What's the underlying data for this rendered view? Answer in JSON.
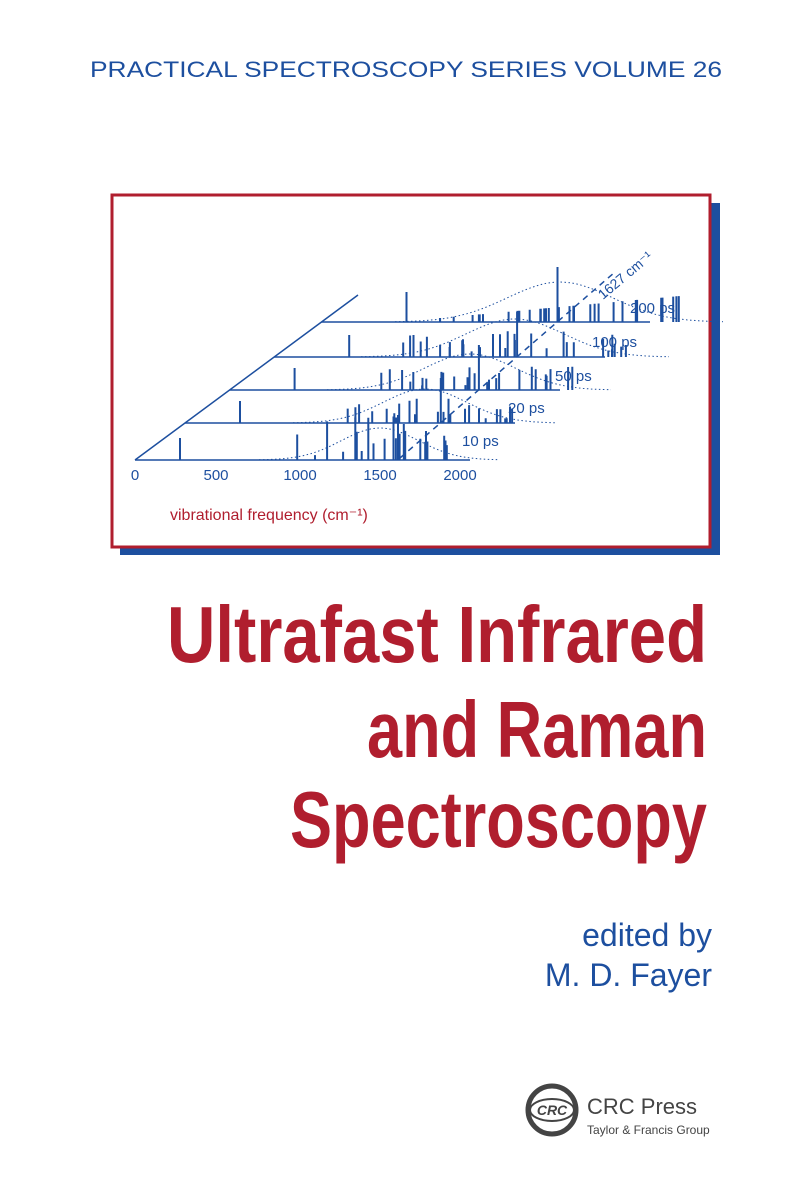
{
  "series_line": "PRACTICAL SPECTROSCOPY SERIES VOLUME 26",
  "figure": {
    "peak_label": "1627 cm⁻¹",
    "trace_labels": [
      "200 ps",
      "100 ps",
      "50 ps",
      "20 ps",
      "10 ps"
    ],
    "x_tick_labels": [
      "0",
      "500",
      "1000",
      "1500",
      "2000"
    ],
    "x_label": "vibrational frequency (cm⁻¹)"
  },
  "title_lines": [
    "Ultrafast Infrared",
    "and Raman",
    "Spectroscopy"
  ],
  "editor": {
    "credit": "edited by",
    "name": "M. D. Fayer"
  },
  "publisher": {
    "logo": "CRC",
    "name": "CRC Press",
    "group": "Taylor & Francis Group"
  }
}
